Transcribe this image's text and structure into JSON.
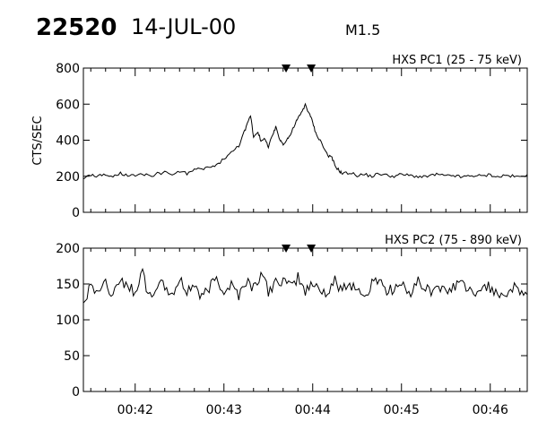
{
  "header": {
    "event_id": "22520",
    "date": "14-JUL-00",
    "flare_class": "M1.5"
  },
  "chart_data": [
    {
      "type": "line",
      "title": "HXS PC1 (25 - 75 keV)",
      "xlabel": "",
      "ylabel": "CTS/SEC",
      "xlim": [
        "00:41:25",
        "00:46:25"
      ],
      "ylim": [
        0,
        800
      ],
      "yticks": [
        0,
        200,
        400,
        600,
        800
      ],
      "xticks": [
        "00:42",
        "00:43",
        "00:44",
        "00:45",
        "00:46"
      ],
      "markers": [
        "00:43:42",
        "00:43:59"
      ],
      "grid": false,
      "series": [
        {
          "x": [
            "00:41:25",
            "00:41:30",
            "00:41:35",
            "00:41:40",
            "00:41:45",
            "00:41:50",
            "00:41:55",
            "00:42:00",
            "00:42:05",
            "00:42:10",
            "00:42:15",
            "00:42:20",
            "00:42:25",
            "00:42:30",
            "00:42:35",
            "00:42:40",
            "00:42:45",
            "00:42:50",
            "00:42:55",
            "00:43:00",
            "00:43:05",
            "00:43:10",
            "00:43:13",
            "00:43:15",
            "00:43:18",
            "00:43:20",
            "00:43:23",
            "00:43:25",
            "00:43:28",
            "00:43:30",
            "00:43:33",
            "00:43:35",
            "00:43:38",
            "00:43:40",
            "00:43:43",
            "00:43:45",
            "00:43:48",
            "00:43:50",
            "00:43:53",
            "00:43:55",
            "00:43:58",
            "00:44:00",
            "00:44:02",
            "00:44:05",
            "00:44:08",
            "00:44:10",
            "00:44:13",
            "00:44:15",
            "00:44:18",
            "00:44:20",
            "00:44:25",
            "00:44:30",
            "00:44:35",
            "00:44:40",
            "00:44:45",
            "00:44:50",
            "00:44:55",
            "00:45:00",
            "00:45:05",
            "00:45:10",
            "00:45:15",
            "00:45:20",
            "00:45:25",
            "00:45:30",
            "00:45:35",
            "00:45:40",
            "00:45:45",
            "00:45:50",
            "00:45:55",
            "00:46:00",
            "00:46:05",
            "00:46:10",
            "00:46:15",
            "00:46:20",
            "00:46:25"
          ],
          "values": [
            190,
            205,
            200,
            210,
            195,
            215,
            205,
            200,
            210,
            200,
            215,
            220,
            210,
            225,
            215,
            235,
            240,
            250,
            260,
            300,
            330,
            370,
            430,
            470,
            540,
            420,
            450,
            390,
            410,
            360,
            430,
            470,
            400,
            380,
            410,
            430,
            490,
            520,
            560,
            600,
            540,
            500,
            440,
            400,
            350,
            320,
            300,
            260,
            230,
            215,
            220,
            205,
            210,
            200,
            215,
            205,
            200,
            210,
            205,
            200,
            195,
            205,
            210,
            200,
            205,
            195,
            200,
            205,
            200,
            210,
            195,
            205,
            200,
            195,
            210
          ]
        }
      ]
    },
    {
      "type": "line",
      "title": "HXS PC2 (75 - 890 keV)",
      "xlabel": "",
      "ylabel": "",
      "xlim": [
        "00:41:25",
        "00:46:25"
      ],
      "ylim": [
        0,
        200
      ],
      "yticks": [
        0,
        50,
        100,
        150,
        200
      ],
      "xticks": [
        "00:42",
        "00:43",
        "00:44",
        "00:45",
        "00:46"
      ],
      "tick_labels_x": [
        "00:42",
        "00:43",
        "00:44",
        "00:45",
        "00:46"
      ],
      "markers": [
        "00:43:42",
        "00:43:59"
      ],
      "grid": false,
      "series": [
        {
          "x": [
            "00:41:25",
            "00:41:30",
            "00:41:35",
            "00:41:40",
            "00:41:45",
            "00:41:50",
            "00:41:55",
            "00:42:00",
            "00:42:05",
            "00:42:10",
            "00:42:15",
            "00:42:20",
            "00:42:25",
            "00:42:30",
            "00:42:35",
            "00:42:40",
            "00:42:45",
            "00:42:50",
            "00:42:55",
            "00:43:00",
            "00:43:05",
            "00:43:10",
            "00:43:15",
            "00:43:20",
            "00:43:25",
            "00:43:30",
            "00:43:35",
            "00:43:40",
            "00:43:45",
            "00:43:50",
            "00:43:55",
            "00:44:00",
            "00:44:05",
            "00:44:10",
            "00:44:15",
            "00:44:20",
            "00:44:25",
            "00:44:30",
            "00:44:35",
            "00:44:40",
            "00:44:45",
            "00:44:50",
            "00:44:55",
            "00:45:00",
            "00:45:05",
            "00:45:10",
            "00:45:15",
            "00:45:20",
            "00:45:25",
            "00:45:30",
            "00:45:35",
            "00:45:40",
            "00:45:45",
            "00:45:50",
            "00:45:55",
            "00:46:00",
            "00:46:05",
            "00:46:10",
            "00:46:15",
            "00:46:20",
            "00:46:25"
          ],
          "values": [
            130,
            145,
            140,
            150,
            135,
            160,
            145,
            140,
            165,
            130,
            150,
            145,
            135,
            155,
            140,
            150,
            130,
            145,
            160,
            140,
            150,
            135,
            155,
            145,
            165,
            140,
            150,
            155,
            145,
            160,
            140,
            150,
            145,
            135,
            155,
            140,
            150,
            145,
            130,
            150,
            160,
            140,
            145,
            150,
            135,
            155,
            145,
            140,
            150,
            135,
            145,
            155,
            140,
            130,
            150,
            145,
            140,
            135,
            145,
            140,
            135
          ]
        }
      ]
    }
  ]
}
